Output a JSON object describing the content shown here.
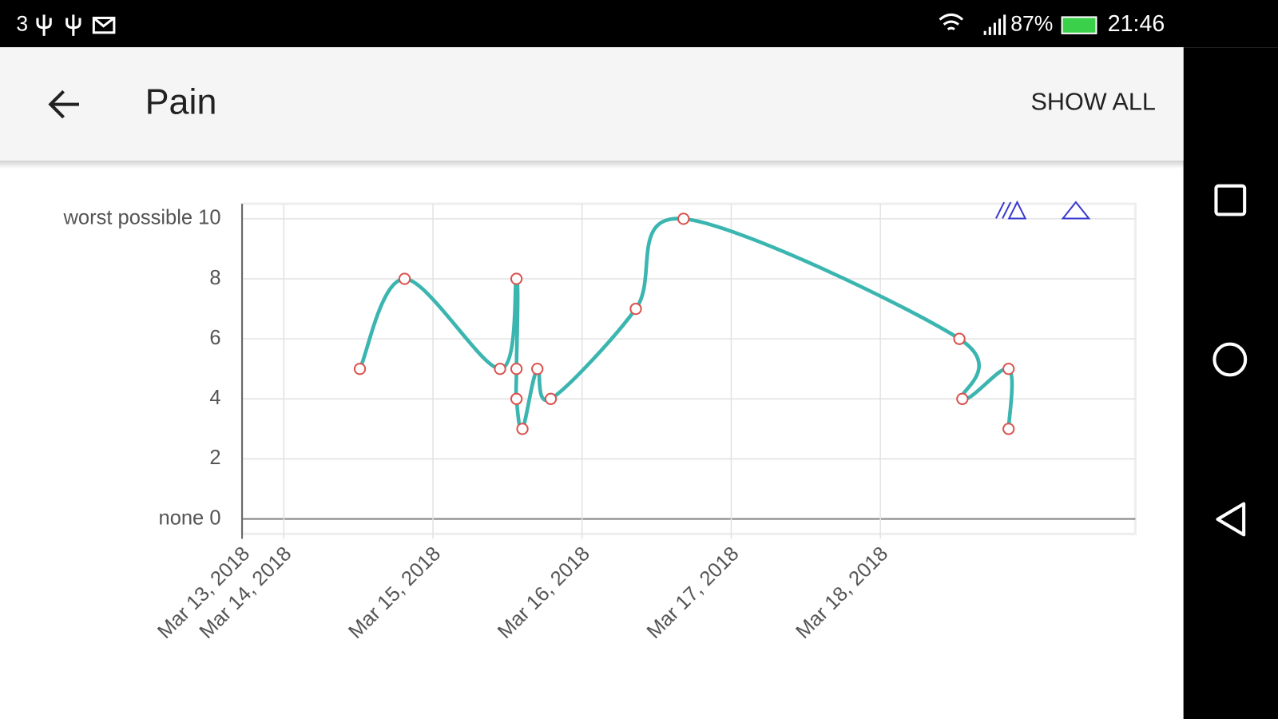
{
  "status_bar": {
    "carrier": "3",
    "battery": "87%",
    "time": "21:46"
  },
  "app_bar": {
    "title": "Pain",
    "action": "SHOW ALL"
  },
  "chart_data": {
    "type": "line",
    "x": [
      14.51,
      14.81,
      15.45,
      15.56,
      15.56,
      15.56,
      15.6,
      15.7,
      15.79,
      16.36,
      16.68,
      18.53,
      18.55,
      18.86,
      18.86
    ],
    "series": [
      {
        "color": "#3ab5b0",
        "marker_color": "#d9534f",
        "values": [
          5,
          8,
          5,
          8,
          5,
          4,
          3,
          5,
          4,
          7,
          10,
          6,
          4,
          5,
          3
        ]
      }
    ],
    "xlim": [
      13.72,
      19.71
    ],
    "xticks": [
      {
        "value": 13.72,
        "label": "Mar 13, 2018"
      },
      {
        "value": 14,
        "label": "Mar 14, 2018"
      },
      {
        "value": 15,
        "label": "Mar 15, 2018"
      },
      {
        "value": 16,
        "label": "Mar 16, 2018"
      },
      {
        "value": 17,
        "label": "Mar 17, 2018"
      },
      {
        "value": 18,
        "label": "Mar 18, 2018"
      }
    ],
    "ylim": [
      -0.5,
      10.5
    ],
    "yticks": [
      {
        "value": 0,
        "label": "none 0"
      },
      2,
      4,
      6,
      8,
      {
        "value": 10,
        "label": "worst possible 10"
      }
    ],
    "grid": true
  }
}
